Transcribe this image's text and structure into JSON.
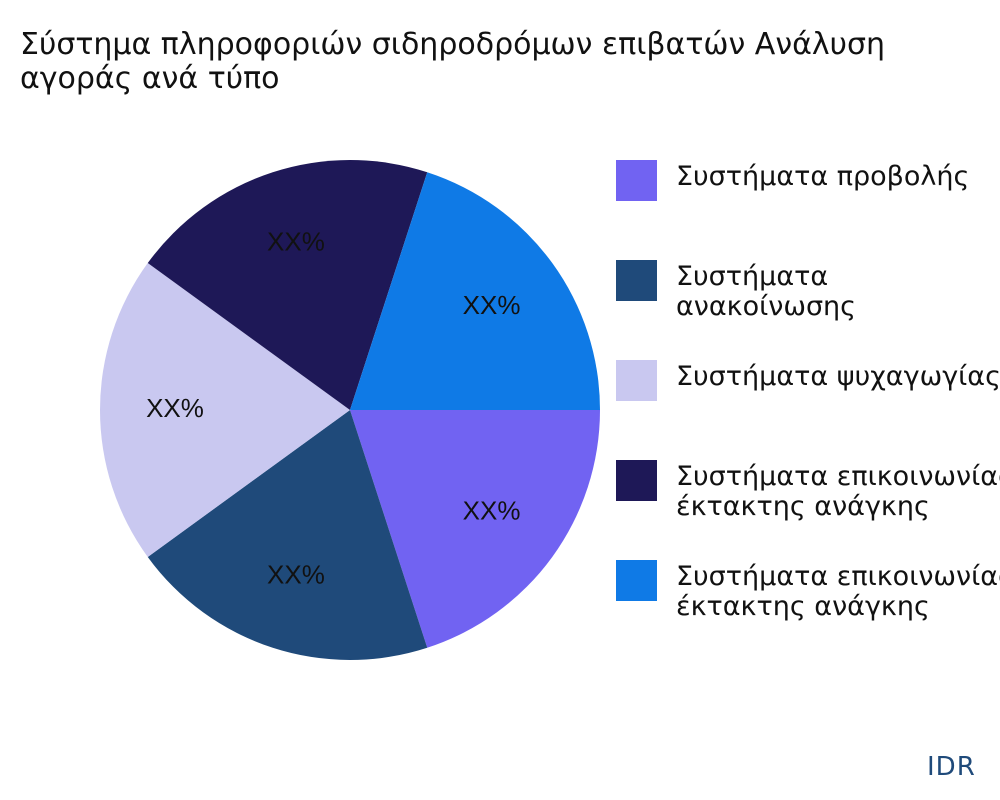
{
  "chart_data": {
    "type": "pie",
    "title_lines": [
      "Σύστημα πληροφοριών σιδηροδρόμων επιβατών Ανάλυση",
      "αγοράς ανά τύπο"
    ],
    "slices": [
      {
        "name": "Συστήματα προβολής",
        "value": 20,
        "label": "XX%",
        "color": "#7163f2"
      },
      {
        "name": "Συστήματα ανακοίνωσης",
        "value": 20,
        "label": "XX%",
        "color": "#1f4a7a"
      },
      {
        "name": "Συστήματα ψυχαγωγίας",
        "value": 20,
        "label": "XX%",
        "color": "#c9c8f0"
      },
      {
        "name": "Συστήματα επικοινωνίας\nέκτακτης ανάγκης",
        "value": 20,
        "label": "XX%",
        "color": "#1e1857"
      },
      {
        "name": "Συστήματα επικοινωνίας\nέκτακτης ανάγκης",
        "value": 20,
        "label": "XX%",
        "color": "#0f7ae6"
      }
    ],
    "legend_position": "right"
  },
  "brand": "IDR"
}
